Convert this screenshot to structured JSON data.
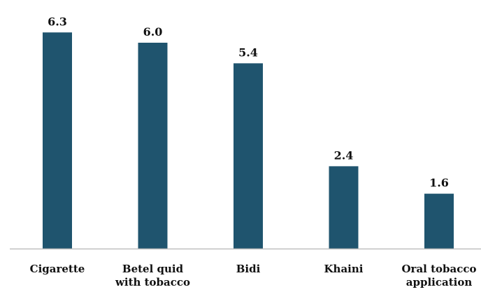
{
  "chart_data": {
    "type": "bar",
    "title": "",
    "xlabel": "",
    "ylabel": "",
    "categories": [
      [
        "Cigarette"
      ],
      [
        "Betel quid",
        "with tobacco"
      ],
      [
        "Bidi"
      ],
      [
        "Khaini"
      ],
      [
        "Oral tobacco",
        "application"
      ]
    ],
    "values": [
      6.3,
      6.0,
      5.4,
      2.4,
      1.6
    ],
    "value_labels": [
      "6.3",
      "6.0",
      "5.4",
      "2.4",
      "1.6"
    ],
    "ylim": [
      0,
      6.5
    ],
    "grid": false,
    "legend": "none",
    "colors": {
      "bar": "#1f546e",
      "axis": "#bfbfbf",
      "text": "#111111"
    }
  }
}
